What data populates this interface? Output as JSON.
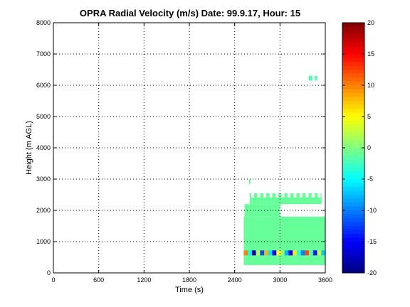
{
  "chart_data": {
    "type": "heatmap",
    "title": "OPRA Radial Velocity (m/s)  Date: 99.9.17, Hour: 15",
    "xlabel": "Time (s)",
    "ylabel": "Height (m AGL)",
    "xlim": [
      0,
      3600
    ],
    "ylim": [
      0,
      8000
    ],
    "xticks": [
      "0",
      "600",
      "1200",
      "1800",
      "2400",
      "3000",
      "3600"
    ],
    "yticks": [
      "0",
      "1000",
      "2000",
      "3000",
      "4000",
      "5000",
      "6000",
      "7000",
      "8000"
    ],
    "grid": true,
    "colorbar": {
      "limits": [
        -20,
        20
      ],
      "ticks": [
        "20",
        "15",
        "10",
        "5",
        "0",
        "-5",
        "-10",
        "-15",
        "-20"
      ],
      "colormap": "jet"
    },
    "regions": [
      {
        "t0": 2520,
        "t1": 3600,
        "h0": 250,
        "h1": 1800,
        "velocity": -1
      },
      {
        "t0": 2530,
        "t1": 3000,
        "h0": 1800,
        "h1": 2200,
        "velocity": -1
      },
      {
        "t0": 2600,
        "t1": 3550,
        "h0": 2200,
        "h1": 2550,
        "velocity": -1
      },
      {
        "t0": 2590,
        "t1": 2610,
        "h0": 2850,
        "h1": 3000,
        "velocity": -1
      },
      {
        "t0": 3380,
        "t1": 3430,
        "h0": 6150,
        "h1": 6300,
        "velocity": -2
      },
      {
        "t0": 3460,
        "t1": 3490,
        "h0": 6150,
        "h1": 6300,
        "velocity": -2
      }
    ],
    "stripe": {
      "t0": 2520,
      "t1": 3600,
      "h0": 560,
      "h1": 720,
      "velocities": [
        10,
        -5,
        -18,
        2,
        -12,
        8,
        -6,
        -15,
        5,
        1,
        -8,
        -16,
        6,
        -4,
        -10,
        12,
        -2,
        -14,
        3,
        -7
      ]
    }
  }
}
